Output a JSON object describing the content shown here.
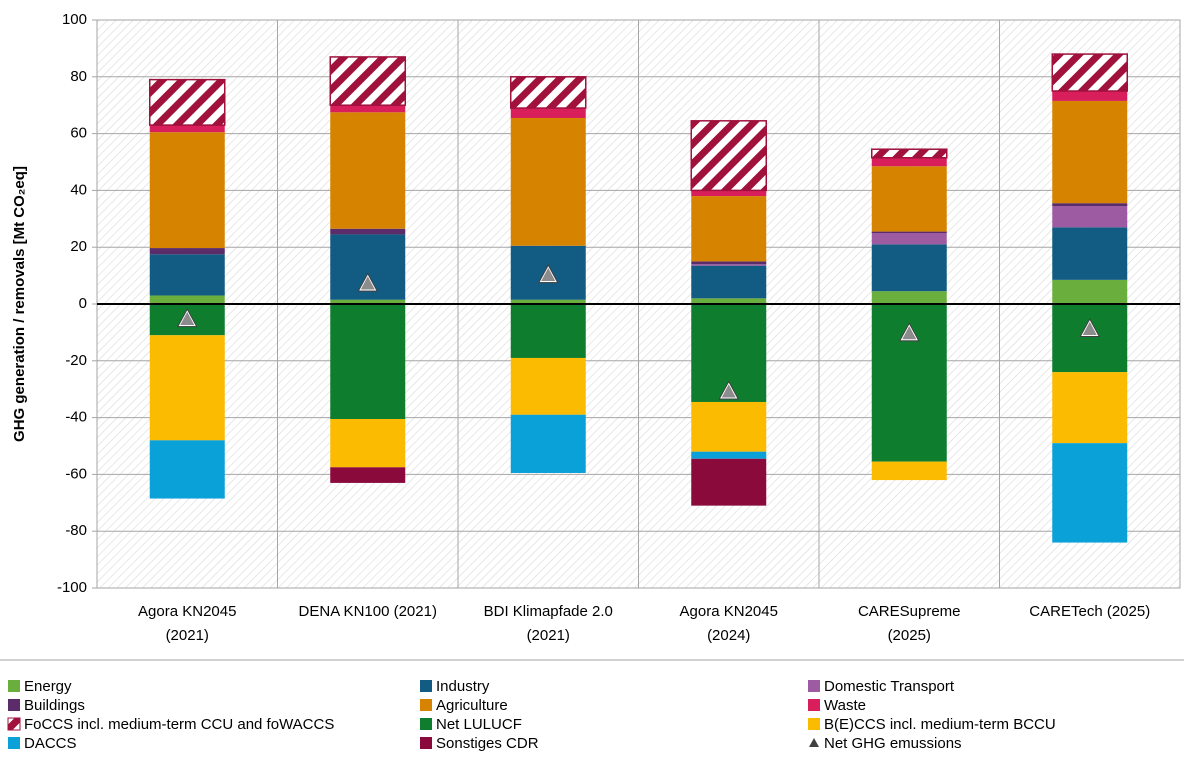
{
  "chart_data": {
    "type": "bar",
    "stacked": true,
    "y_label": "GHG generation / removals [Mt CO₂eq]",
    "categories": [
      [
        "Agora KN2045",
        "(2021)"
      ],
      [
        "DENA KN100 (2021)"
      ],
      [
        "BDI Klimapfade 2.0",
        "(2021)"
      ],
      [
        "Agora KN2045",
        "(2024)"
      ],
      [
        "CARESupreme",
        "(2025)"
      ],
      [
        "CARETech (2025)"
      ]
    ],
    "ylim": [
      -100,
      100
    ],
    "yticks": [
      100,
      80,
      60,
      40,
      20,
      0,
      -20,
      -40,
      -60,
      -80,
      -100
    ],
    "grid": true,
    "legend": "bottom",
    "series": [
      {
        "name": "Energy",
        "color": "#6aaf3d",
        "values": [
          3,
          1.5,
          1.5,
          2,
          4.5,
          8.5
        ]
      },
      {
        "name": "Industry",
        "color": "#125b82",
        "values": [
          14.5,
          23,
          19,
          11.5,
          16.5,
          18.5
        ]
      },
      {
        "name": "Domestic Transport",
        "color": "#9d5ba1",
        "values": [
          0,
          0,
          0,
          0.5,
          4,
          7.5
        ]
      },
      {
        "name": "Buildings",
        "color": "#5a2d6a",
        "values": [
          2.2,
          2,
          0,
          1,
          0.5,
          1
        ]
      },
      {
        "name": "Agriculture",
        "color": "#d68400",
        "values": [
          40.8,
          41,
          45,
          23,
          23,
          36
        ]
      },
      {
        "name": "Waste",
        "color": "#d81f5c",
        "values": [
          2.5,
          2.5,
          3.5,
          2,
          3,
          3.5
        ]
      },
      {
        "name": "FoCCS incl. medium-term CCU and foWACCS",
        "color": "#a0113c",
        "hatch": true,
        "values": [
          16,
          17,
          11,
          24.5,
          3,
          13
        ]
      },
      {
        "name": "Net LULUCF",
        "color": "#0f7d2e",
        "values": [
          -11,
          -40.5,
          -19,
          -34.5,
          -55.5,
          -24
        ]
      },
      {
        "name": "B(E)CCS incl. medium-term BCCU",
        "color": "#fbbb00",
        "values": [
          -37,
          -17,
          -20,
          -17.5,
          -6.5,
          -25
        ]
      },
      {
        "name": "DACCS",
        "color": "#0aa0d8",
        "values": [
          -20.5,
          0,
          -20.5,
          -2.5,
          0,
          -35
        ]
      },
      {
        "name": "Sonstiges CDR",
        "color": "#8b0a3c",
        "values": [
          0,
          -5.5,
          0,
          -16.5,
          0,
          0
        ]
      },
      {
        "name": "Net GHG emussions",
        "color": "#8c8c8c",
        "marker": "triangle",
        "values": [
          -5.5,
          7,
          10,
          -31,
          -10.5,
          -9
        ]
      }
    ]
  }
}
